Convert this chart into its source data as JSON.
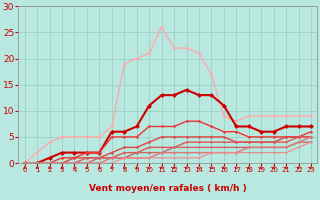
{
  "title": "",
  "xlabel": "Vent moyen/en rafales ( km/h )",
  "ylabel": "",
  "xlim": [
    -0.5,
    23.5
  ],
  "ylim": [
    0,
    30
  ],
  "yticks": [
    0,
    5,
    10,
    15,
    20,
    25,
    30
  ],
  "xticks": [
    0,
    1,
    2,
    3,
    4,
    5,
    6,
    7,
    8,
    9,
    10,
    11,
    12,
    13,
    14,
    15,
    16,
    17,
    18,
    19,
    20,
    21,
    22,
    23
  ],
  "bg_color": "#b8e8e0",
  "grid_color": "#99ccbb",
  "series": [
    {
      "x": [
        0,
        1,
        2,
        3,
        4,
        5,
        6,
        7,
        8,
        9,
        10,
        11,
        12,
        13,
        14,
        15,
        16,
        17,
        18,
        19,
        20,
        21,
        22,
        23
      ],
      "y": [
        0,
        2,
        4,
        5,
        5,
        5,
        5,
        7,
        19,
        20,
        21,
        26,
        22,
        22,
        21,
        17,
        9,
        8,
        9,
        9,
        9,
        9,
        9,
        9
      ],
      "color": "#ffaaaa",
      "lw": 1.0,
      "marker": "o",
      "ms": 2.0
    },
    {
      "x": [
        0,
        1,
        2,
        3,
        4,
        5,
        6,
        7,
        8,
        9,
        10,
        11,
        12,
        13,
        14,
        15,
        16,
        17,
        18,
        19,
        20,
        21,
        22,
        23
      ],
      "y": [
        0,
        0,
        1,
        2,
        2,
        2,
        2,
        6,
        6,
        7,
        11,
        13,
        13,
        14,
        13,
        13,
        11,
        7,
        7,
        6,
        6,
        7,
        7,
        7
      ],
      "color": "#cc0000",
      "lw": 1.5,
      "marker": "D",
      "ms": 2.5
    },
    {
      "x": [
        0,
        1,
        2,
        3,
        4,
        5,
        6,
        7,
        8,
        9,
        10,
        11,
        12,
        13,
        14,
        15,
        16,
        17,
        18,
        19,
        20,
        21,
        22,
        23
      ],
      "y": [
        0,
        0,
        0,
        1,
        1,
        2,
        2,
        5,
        5,
        5,
        7,
        7,
        7,
        8,
        8,
        7,
        6,
        6,
        5,
        5,
        5,
        5,
        5,
        6
      ],
      "color": "#ee3333",
      "lw": 1.0,
      "marker": "o",
      "ms": 1.8
    },
    {
      "x": [
        0,
        1,
        2,
        3,
        4,
        5,
        6,
        7,
        8,
        9,
        10,
        11,
        12,
        13,
        14,
        15,
        16,
        17,
        18,
        19,
        20,
        21,
        22,
        23
      ],
      "y": [
        0,
        0,
        0,
        0,
        1,
        1,
        1,
        2,
        3,
        3,
        4,
        5,
        5,
        5,
        5,
        5,
        5,
        4,
        4,
        4,
        4,
        5,
        5,
        5
      ],
      "color": "#dd4444",
      "lw": 1.0,
      "marker": "o",
      "ms": 1.8
    },
    {
      "x": [
        0,
        1,
        2,
        3,
        4,
        5,
        6,
        7,
        8,
        9,
        10,
        11,
        12,
        13,
        14,
        15,
        16,
        17,
        18,
        19,
        20,
        21,
        22,
        23
      ],
      "y": [
        0,
        0,
        0,
        0,
        0,
        1,
        1,
        1,
        2,
        2,
        3,
        3,
        3,
        4,
        4,
        4,
        4,
        4,
        4,
        4,
        4,
        4,
        5,
        5
      ],
      "color": "#dd5555",
      "lw": 1.0,
      "marker": "o",
      "ms": 1.5
    },
    {
      "x": [
        0,
        1,
        2,
        3,
        4,
        5,
        6,
        7,
        8,
        9,
        10,
        11,
        12,
        13,
        14,
        15,
        16,
        17,
        18,
        19,
        20,
        21,
        22,
        23
      ],
      "y": [
        0,
        0,
        0,
        0,
        0,
        0,
        1,
        1,
        1,
        2,
        2,
        2,
        3,
        3,
        3,
        3,
        3,
        3,
        3,
        3,
        3,
        3,
        4,
        4
      ],
      "color": "#cc6666",
      "lw": 1.0,
      "marker": "o",
      "ms": 1.5
    },
    {
      "x": [
        0,
        1,
        2,
        3,
        4,
        5,
        6,
        7,
        8,
        9,
        10,
        11,
        12,
        13,
        14,
        15,
        16,
        17,
        18,
        19,
        20,
        21,
        22,
        23
      ],
      "y": [
        0,
        0,
        0,
        0,
        0,
        0,
        0,
        1,
        1,
        1,
        1,
        2,
        2,
        2,
        2,
        2,
        2,
        2,
        3,
        3,
        3,
        3,
        4,
        5
      ],
      "color": "#dd7777",
      "lw": 1.0,
      "marker": "o",
      "ms": 1.5
    },
    {
      "x": [
        0,
        1,
        2,
        3,
        4,
        5,
        6,
        7,
        8,
        9,
        10,
        11,
        12,
        13,
        14,
        15,
        16,
        17,
        18,
        19,
        20,
        21,
        22,
        23
      ],
      "y": [
        0,
        0,
        0,
        0,
        0,
        0,
        0,
        0,
        1,
        1,
        1,
        1,
        1,
        1,
        1,
        2,
        2,
        2,
        2,
        2,
        2,
        2,
        3,
        4
      ],
      "color": "#ee8888",
      "lw": 0.8,
      "marker": "o",
      "ms": 1.2
    }
  ],
  "arrow_color": "#cc0000",
  "xlabel_color": "#cc0000",
  "tick_color": "#cc0000",
  "xlabel_fontsize": 6.5,
  "ytick_fontsize": 6.5,
  "xtick_fontsize": 5.0
}
